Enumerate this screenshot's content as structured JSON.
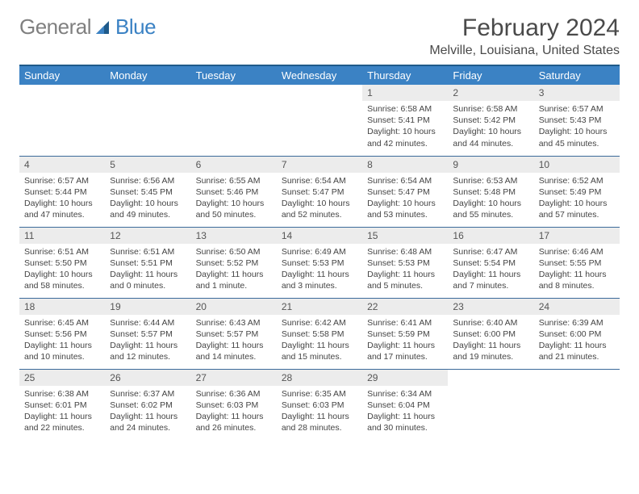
{
  "logo": {
    "part1": "General",
    "part2": "Blue"
  },
  "title": "February 2024",
  "location": "Melville, Louisiana, United States",
  "colors": {
    "header_bg": "#3b82c4",
    "header_text": "#ffffff",
    "rule": "#3b6a9a",
    "daynum_bg": "#ececec",
    "body_text": "#444444",
    "title_text": "#4a4a4a",
    "logo_gray": "#808080",
    "logo_blue": "#3b82c4"
  },
  "weekday_labels": [
    "Sunday",
    "Monday",
    "Tuesday",
    "Wednesday",
    "Thursday",
    "Friday",
    "Saturday"
  ],
  "weeks": [
    [
      null,
      null,
      null,
      null,
      {
        "n": "1",
        "sr": "6:58 AM",
        "ss": "5:41 PM",
        "dl": "10 hours and 42 minutes."
      },
      {
        "n": "2",
        "sr": "6:58 AM",
        "ss": "5:42 PM",
        "dl": "10 hours and 44 minutes."
      },
      {
        "n": "3",
        "sr": "6:57 AM",
        "ss": "5:43 PM",
        "dl": "10 hours and 45 minutes."
      }
    ],
    [
      {
        "n": "4",
        "sr": "6:57 AM",
        "ss": "5:44 PM",
        "dl": "10 hours and 47 minutes."
      },
      {
        "n": "5",
        "sr": "6:56 AM",
        "ss": "5:45 PM",
        "dl": "10 hours and 49 minutes."
      },
      {
        "n": "6",
        "sr": "6:55 AM",
        "ss": "5:46 PM",
        "dl": "10 hours and 50 minutes."
      },
      {
        "n": "7",
        "sr": "6:54 AM",
        "ss": "5:47 PM",
        "dl": "10 hours and 52 minutes."
      },
      {
        "n": "8",
        "sr": "6:54 AM",
        "ss": "5:47 PM",
        "dl": "10 hours and 53 minutes."
      },
      {
        "n": "9",
        "sr": "6:53 AM",
        "ss": "5:48 PM",
        "dl": "10 hours and 55 minutes."
      },
      {
        "n": "10",
        "sr": "6:52 AM",
        "ss": "5:49 PM",
        "dl": "10 hours and 57 minutes."
      }
    ],
    [
      {
        "n": "11",
        "sr": "6:51 AM",
        "ss": "5:50 PM",
        "dl": "10 hours and 58 minutes."
      },
      {
        "n": "12",
        "sr": "6:51 AM",
        "ss": "5:51 PM",
        "dl": "11 hours and 0 minutes."
      },
      {
        "n": "13",
        "sr": "6:50 AM",
        "ss": "5:52 PM",
        "dl": "11 hours and 1 minute."
      },
      {
        "n": "14",
        "sr": "6:49 AM",
        "ss": "5:53 PM",
        "dl": "11 hours and 3 minutes."
      },
      {
        "n": "15",
        "sr": "6:48 AM",
        "ss": "5:53 PM",
        "dl": "11 hours and 5 minutes."
      },
      {
        "n": "16",
        "sr": "6:47 AM",
        "ss": "5:54 PM",
        "dl": "11 hours and 7 minutes."
      },
      {
        "n": "17",
        "sr": "6:46 AM",
        "ss": "5:55 PM",
        "dl": "11 hours and 8 minutes."
      }
    ],
    [
      {
        "n": "18",
        "sr": "6:45 AM",
        "ss": "5:56 PM",
        "dl": "11 hours and 10 minutes."
      },
      {
        "n": "19",
        "sr": "6:44 AM",
        "ss": "5:57 PM",
        "dl": "11 hours and 12 minutes."
      },
      {
        "n": "20",
        "sr": "6:43 AM",
        "ss": "5:57 PM",
        "dl": "11 hours and 14 minutes."
      },
      {
        "n": "21",
        "sr": "6:42 AM",
        "ss": "5:58 PM",
        "dl": "11 hours and 15 minutes."
      },
      {
        "n": "22",
        "sr": "6:41 AM",
        "ss": "5:59 PM",
        "dl": "11 hours and 17 minutes."
      },
      {
        "n": "23",
        "sr": "6:40 AM",
        "ss": "6:00 PM",
        "dl": "11 hours and 19 minutes."
      },
      {
        "n": "24",
        "sr": "6:39 AM",
        "ss": "6:00 PM",
        "dl": "11 hours and 21 minutes."
      }
    ],
    [
      {
        "n": "25",
        "sr": "6:38 AM",
        "ss": "6:01 PM",
        "dl": "11 hours and 22 minutes."
      },
      {
        "n": "26",
        "sr": "6:37 AM",
        "ss": "6:02 PM",
        "dl": "11 hours and 24 minutes."
      },
      {
        "n": "27",
        "sr": "6:36 AM",
        "ss": "6:03 PM",
        "dl": "11 hours and 26 minutes."
      },
      {
        "n": "28",
        "sr": "6:35 AM",
        "ss": "6:03 PM",
        "dl": "11 hours and 28 minutes."
      },
      {
        "n": "29",
        "sr": "6:34 AM",
        "ss": "6:04 PM",
        "dl": "11 hours and 30 minutes."
      },
      null,
      null
    ]
  ],
  "labels": {
    "sunrise": "Sunrise:",
    "sunset": "Sunset:",
    "daylight": "Daylight:"
  }
}
